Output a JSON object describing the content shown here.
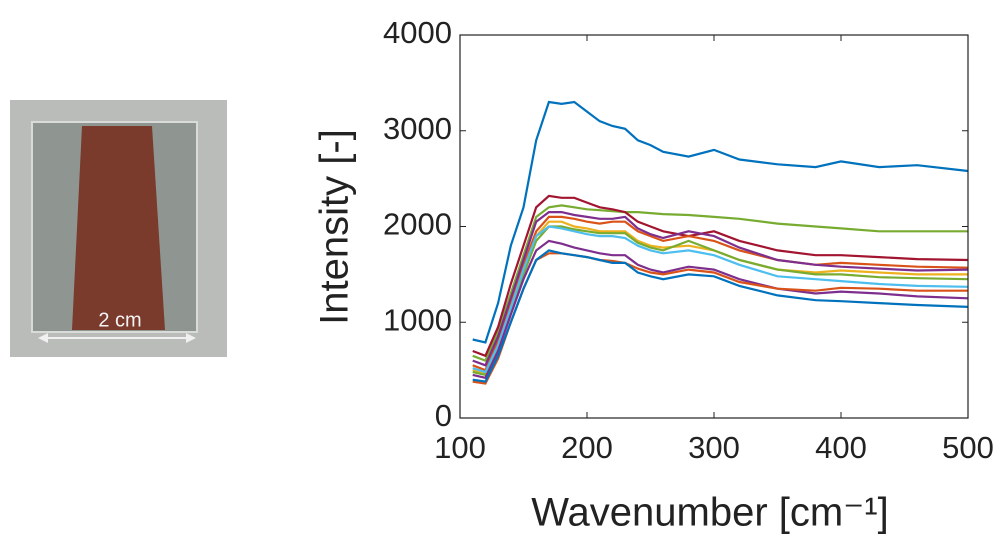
{
  "photo_label": "2 cm",
  "chart_data": {
    "type": "line",
    "xlabel": "Wavenumber [cm⁻¹]",
    "ylabel": "Intensity [-]",
    "x": [
      110,
      120,
      130,
      140,
      150,
      160,
      170,
      180,
      190,
      200,
      210,
      220,
      230,
      240,
      250,
      260,
      280,
      300,
      320,
      350,
      380,
      400,
      430,
      460,
      500
    ],
    "xlim": [
      100,
      500
    ],
    "xticks": [
      100,
      200,
      300,
      400,
      500
    ],
    "ylim": [
      0,
      4000
    ],
    "yticks": [
      0,
      1000,
      2000,
      3000,
      4000
    ],
    "grid": false,
    "series": [
      {
        "color": "#0072BD",
        "values": [
          820,
          790,
          1200,
          1800,
          2200,
          2900,
          3300,
          3280,
          3300,
          3200,
          3100,
          3050,
          3020,
          2900,
          2850,
          2780,
          2730,
          2800,
          2700,
          2650,
          2620,
          2680,
          2620,
          2640,
          2580
        ]
      },
      {
        "color": "#77AC30",
        "values": [
          650,
          600,
          900,
          1300,
          1700,
          2100,
          2200,
          2220,
          2200,
          2180,
          2170,
          2160,
          2150,
          2150,
          2140,
          2130,
          2120,
          2100,
          2080,
          2030,
          2000,
          1980,
          1950,
          1950,
          1950
        ]
      },
      {
        "color": "#A2142F",
        "values": [
          700,
          650,
          950,
          1400,
          1800,
          2200,
          2320,
          2300,
          2300,
          2250,
          2200,
          2180,
          2150,
          2050,
          2000,
          1950,
          1900,
          1950,
          1850,
          1750,
          1700,
          1700,
          1680,
          1660,
          1650
        ]
      },
      {
        "color": "#D95319",
        "values": [
          550,
          500,
          800,
          1200,
          1600,
          1950,
          2100,
          2100,
          2080,
          2050,
          2030,
          2050,
          2050,
          1950,
          1900,
          1850,
          1900,
          1850,
          1750,
          1650,
          1600,
          1620,
          1600,
          1580,
          1570
        ]
      },
      {
        "color": "#EDB120",
        "values": [
          500,
          470,
          750,
          1150,
          1550,
          1900,
          2050,
          2050,
          2000,
          1980,
          1950,
          1950,
          1950,
          1850,
          1800,
          1780,
          1800,
          1750,
          1650,
          1550,
          1520,
          1540,
          1520,
          1500,
          1500
        ]
      },
      {
        "color": "#77AC30",
        "values": [
          480,
          450,
          720,
          1100,
          1500,
          1850,
          2000,
          2000,
          1970,
          1950,
          1930,
          1930,
          1930,
          1830,
          1780,
          1750,
          1850,
          1750,
          1650,
          1550,
          1500,
          1500,
          1470,
          1460,
          1450
        ]
      },
      {
        "color": "#7E2F8E",
        "values": [
          600,
          550,
          850,
          1250,
          1650,
          2050,
          2150,
          2150,
          2120,
          2100,
          2080,
          2080,
          2100,
          1980,
          1920,
          1880,
          1950,
          1900,
          1780,
          1650,
          1600,
          1580,
          1560,
          1540,
          1550
        ]
      },
      {
        "color": "#4DBEEE",
        "values": [
          520,
          480,
          760,
          1150,
          1550,
          1900,
          2000,
          1980,
          1950,
          1920,
          1900,
          1900,
          1880,
          1800,
          1750,
          1720,
          1750,
          1700,
          1600,
          1480,
          1450,
          1430,
          1400,
          1380,
          1370
        ]
      },
      {
        "color": "#7E2F8E",
        "values": [
          450,
          420,
          700,
          1080,
          1450,
          1750,
          1850,
          1820,
          1780,
          1750,
          1720,
          1700,
          1700,
          1600,
          1550,
          1520,
          1580,
          1550,
          1450,
          1350,
          1300,
          1320,
          1300,
          1270,
          1250
        ]
      },
      {
        "color": "#D95319",
        "values": [
          380,
          360,
          620,
          1000,
          1350,
          1650,
          1720,
          1720,
          1700,
          1680,
          1650,
          1640,
          1620,
          1560,
          1520,
          1500,
          1550,
          1520,
          1420,
          1350,
          1330,
          1360,
          1350,
          1330,
          1330
        ]
      },
      {
        "color": "#0072BD",
        "values": [
          400,
          380,
          650,
          1000,
          1350,
          1650,
          1750,
          1720,
          1700,
          1680,
          1650,
          1620,
          1620,
          1520,
          1480,
          1450,
          1500,
          1480,
          1380,
          1280,
          1230,
          1220,
          1200,
          1180,
          1160
        ]
      }
    ]
  }
}
